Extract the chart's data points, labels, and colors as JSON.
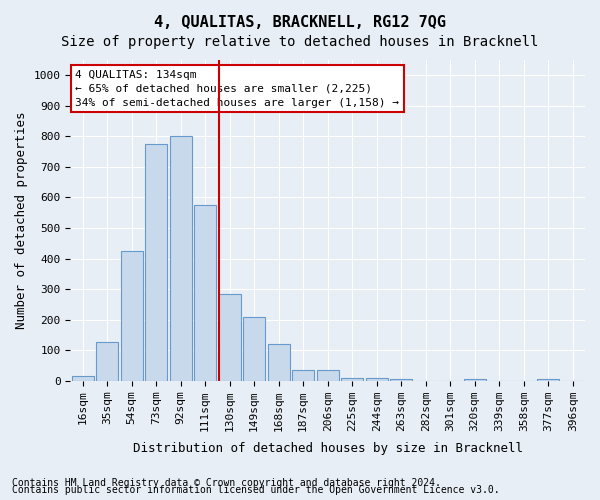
{
  "title": "4, QUALITAS, BRACKNELL, RG12 7QG",
  "subtitle": "Size of property relative to detached houses in Bracknell",
  "xlabel": "Distribution of detached houses by size in Bracknell",
  "ylabel": "Number of detached properties",
  "categories": [
    "16sqm",
    "35sqm",
    "54sqm",
    "73sqm",
    "92sqm",
    "111sqm",
    "130sqm",
    "149sqm",
    "168sqm",
    "187sqm",
    "206sqm",
    "225sqm",
    "244sqm",
    "263sqm",
    "282sqm",
    "301sqm",
    "320sqm",
    "339sqm",
    "358sqm",
    "377sqm",
    "396sqm"
  ],
  "values": [
    15,
    125,
    425,
    775,
    800,
    575,
    285,
    210,
    120,
    35,
    35,
    10,
    10,
    5,
    0,
    0,
    5,
    0,
    0,
    5,
    0
  ],
  "bar_color": "#c9d9ec",
  "bar_edge_color": "#6699cc",
  "vline_x_index": 6,
  "vline_color": "#cc0000",
  "annotation_text": "4 QUALITAS: 134sqm\n← 65% of detached houses are smaller (2,225)\n34% of semi-detached houses are larger (1,158) →",
  "annotation_box_color": "#ffffff",
  "annotation_box_edge_color": "#cc0000",
  "ylim": [
    0,
    1050
  ],
  "yticks": [
    0,
    100,
    200,
    300,
    400,
    500,
    600,
    700,
    800,
    900,
    1000
  ],
  "footnote1": "Contains HM Land Registry data © Crown copyright and database right 2024.",
  "footnote2": "Contains public sector information licensed under the Open Government Licence v3.0.",
  "background_color": "#e8eef5",
  "plot_background_color": "#e8eef5",
  "grid_color": "#ffffff",
  "title_fontsize": 11,
  "subtitle_fontsize": 10,
  "axis_label_fontsize": 9,
  "tick_fontsize": 8,
  "annotation_fontsize": 8,
  "footnote_fontsize": 7
}
